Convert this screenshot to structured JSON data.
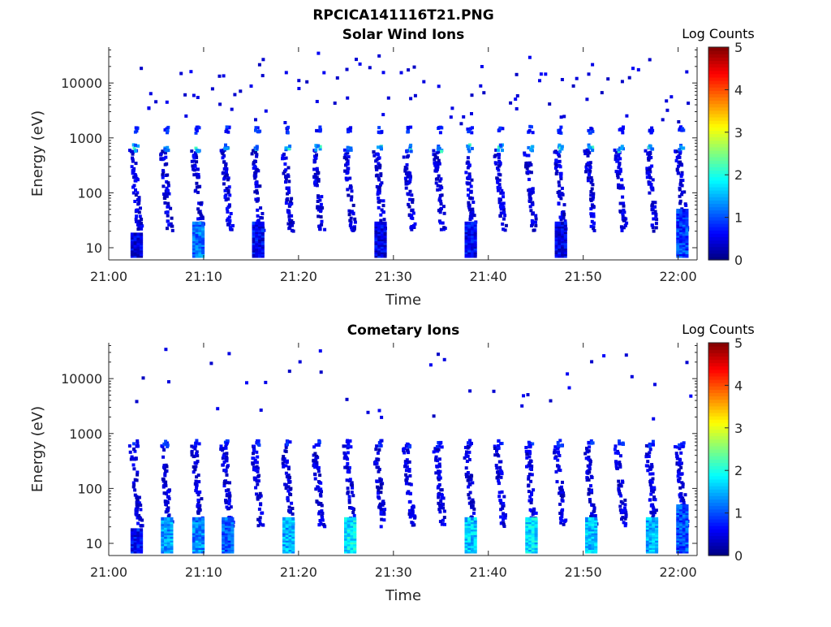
{
  "figure_title": "RPCICA141116T21.PNG",
  "chart_data": [
    {
      "type": "heatmap",
      "title": "Solar Wind Ions",
      "xlabel": "Time",
      "ylabel": "Energy (eV)",
      "yscale": "log",
      "ylim": [
        6,
        45000
      ],
      "xlim_minutes": [
        60,
        122
      ],
      "xticks": [
        {
          "minutes": 60,
          "label": "21:00"
        },
        {
          "minutes": 70,
          "label": "21:10"
        },
        {
          "minutes": 80,
          "label": "21:20"
        },
        {
          "minutes": 90,
          "label": "21:30"
        },
        {
          "minutes": 100,
          "label": "21:40"
        },
        {
          "minutes": 110,
          "label": "21:50"
        },
        {
          "minutes": 120,
          "label": "22:00"
        }
      ],
      "yticks": [
        {
          "value": 10,
          "label": "10"
        },
        {
          "value": 100,
          "label": "100"
        },
        {
          "value": 1000,
          "label": "1000"
        },
        {
          "value": 10000,
          "label": "10000"
        }
      ],
      "colorbar": {
        "label": "Log Counts",
        "min": 0,
        "max": 5,
        "ticks": [
          "0",
          "1",
          "2",
          "3",
          "4",
          "5"
        ],
        "colormap": "jet"
      },
      "grid": false,
      "sweep_start_minutes": [
        62.3,
        65.5,
        68.8,
        71.9,
        75.1,
        78.3,
        81.5,
        84.8,
        88.0,
        91.1,
        94.3,
        97.5,
        100.7,
        103.9,
        107.0,
        110.2,
        113.4,
        116.6,
        119.8
      ],
      "low_energy_columns": [
        {
          "t": 62.3,
          "e_min": 6,
          "e_max": 18,
          "log_counts": 0.5
        },
        {
          "t": 68.8,
          "e_min": 6,
          "e_max": 28,
          "log_counts": 1.2
        },
        {
          "t": 75.1,
          "e_min": 6,
          "e_max": 28,
          "log_counts": 0.6
        },
        {
          "t": 88.0,
          "e_min": 6,
          "e_max": 28,
          "log_counts": 0.5
        },
        {
          "t": 97.5,
          "e_min": 6,
          "e_max": 28,
          "log_counts": 0.6
        },
        {
          "t": 107.0,
          "e_min": 6,
          "e_max": 28,
          "log_counts": 0.5
        },
        {
          "t": 119.8,
          "e_min": 6,
          "e_max": 50,
          "log_counts": 0.9
        }
      ],
      "solar_wind_band_energies_eV": [
        650,
        1400
      ]
    },
    {
      "type": "heatmap",
      "title": "Cometary Ions",
      "xlabel": "Time",
      "ylabel": "Energy (eV)",
      "yscale": "log",
      "ylim": [
        6,
        45000
      ],
      "xlim_minutes": [
        60,
        122
      ],
      "xticks": [
        {
          "minutes": 60,
          "label": "21:00"
        },
        {
          "minutes": 70,
          "label": "21:10"
        },
        {
          "minutes": 80,
          "label": "21:20"
        },
        {
          "minutes": 90,
          "label": "21:30"
        },
        {
          "minutes": 100,
          "label": "21:40"
        },
        {
          "minutes": 110,
          "label": "21:50"
        },
        {
          "minutes": 120,
          "label": "22:00"
        }
      ],
      "yticks": [
        {
          "value": 10,
          "label": "10"
        },
        {
          "value": 100,
          "label": "100"
        },
        {
          "value": 1000,
          "label": "1000"
        },
        {
          "value": 10000,
          "label": "10000"
        }
      ],
      "colorbar": {
        "label": "Log Counts",
        "min": 0,
        "max": 5,
        "ticks": [
          "0",
          "1",
          "2",
          "3",
          "4",
          "5"
        ],
        "colormap": "jet"
      },
      "grid": false,
      "sweep_start_minutes": [
        62.3,
        65.5,
        68.8,
        71.9,
        75.1,
        78.3,
        81.5,
        84.8,
        88.0,
        91.1,
        94.3,
        97.5,
        100.7,
        103.9,
        107.0,
        110.2,
        113.4,
        116.6,
        119.8
      ],
      "low_energy_columns": [
        {
          "t": 62.3,
          "e_min": 6,
          "e_max": 18,
          "log_counts": 0.6
        },
        {
          "t": 65.5,
          "e_min": 6,
          "e_max": 28,
          "log_counts": 1.4
        },
        {
          "t": 68.8,
          "e_min": 6,
          "e_max": 28,
          "log_counts": 1.3
        },
        {
          "t": 71.9,
          "e_min": 6,
          "e_max": 28,
          "log_counts": 1.1
        },
        {
          "t": 78.3,
          "e_min": 6,
          "e_max": 28,
          "log_counts": 1.5
        },
        {
          "t": 84.8,
          "e_min": 6,
          "e_max": 28,
          "log_counts": 1.8
        },
        {
          "t": 97.5,
          "e_min": 6,
          "e_max": 28,
          "log_counts": 1.6
        },
        {
          "t": 103.9,
          "e_min": 6,
          "e_max": 28,
          "log_counts": 1.7
        },
        {
          "t": 110.2,
          "e_min": 6,
          "e_max": 28,
          "log_counts": 1.6
        },
        {
          "t": 116.6,
          "e_min": 6,
          "e_max": 28,
          "log_counts": 1.5
        },
        {
          "t": 119.8,
          "e_min": 6,
          "e_max": 50,
          "log_counts": 1.0
        }
      ],
      "solar_wind_band_energies_eV": [
        650
      ]
    }
  ]
}
